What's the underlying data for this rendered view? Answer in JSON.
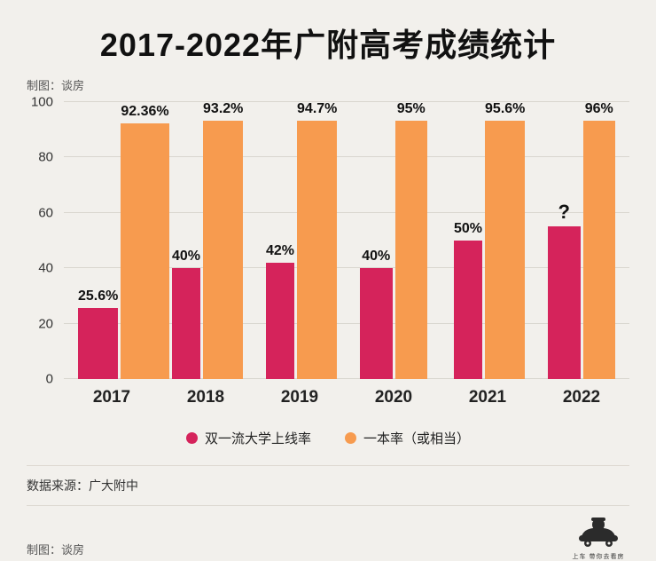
{
  "title": "2017-2022年广附高考成绩统计",
  "credit_top": "制图：谈房",
  "source": "数据来源：广大附中",
  "credit_bottom": "制图：谈房",
  "logo": {
    "tagline": "上车 带你去看房"
  },
  "colors": {
    "background": "#f2f0ec",
    "pink": "#d5235b",
    "orange": "#f79b4f",
    "gridline": "#d9d6cf"
  },
  "chart_data": {
    "type": "bar",
    "categories": [
      "2017",
      "2018",
      "2019",
      "2020",
      "2021",
      "2022"
    ],
    "series": [
      {
        "name": "双一流大学上线率",
        "color": "#d5235b",
        "values": [
          25.6,
          40,
          42,
          40,
          50,
          55
        ],
        "labels": [
          "25.6%",
          "40%",
          "42%",
          "40%",
          "50%",
          "?"
        ]
      },
      {
        "name": "一本率（或相当）",
        "color": "#f79b4f",
        "values": [
          92.36,
          93.2,
          94.7,
          95,
          95.6,
          96
        ],
        "labels": [
          "92.36%",
          "93.2%",
          "94.7%",
          "95%",
          "95.6%",
          "96%"
        ]
      }
    ],
    "ylim": [
      0,
      100
    ],
    "yticks": [
      0,
      20,
      40,
      60,
      80,
      100
    ],
    "grid": true,
    "legend_position": "bottom",
    "note": "2022 双一流大学上线率 labeled with ? (value uncertain, bar drawn ≈55)"
  }
}
